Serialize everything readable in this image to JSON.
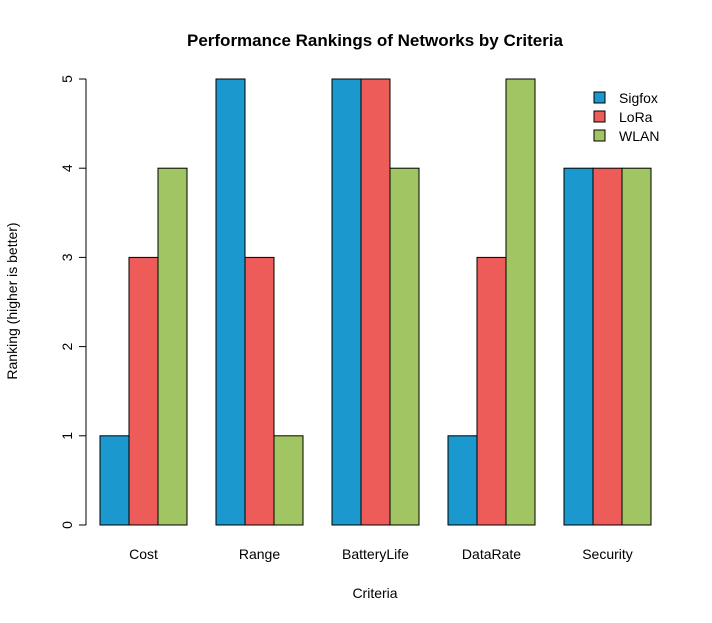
{
  "chart_data": {
    "type": "bar",
    "title": "Performance Rankings of Networks by Criteria",
    "xlabel": "Criteria",
    "ylabel": "Ranking (higher is better)",
    "categories": [
      "Cost",
      "Range",
      "BatteryLife",
      "DataRate",
      "Security"
    ],
    "series": [
      {
        "name": "Sigfox",
        "color": "#1b98cd",
        "values": [
          1,
          5,
          5,
          1,
          4
        ]
      },
      {
        "name": "LoRa",
        "color": "#ed5c58",
        "values": [
          3,
          3,
          5,
          3,
          4
        ]
      },
      {
        "name": "WLAN",
        "color": "#a0c562",
        "values": [
          4,
          1,
          4,
          5,
          4
        ]
      }
    ],
    "ylim": [
      0,
      5
    ],
    "yticks": [
      "0",
      "1",
      "2",
      "3",
      "4",
      "5"
    ],
    "grid": false,
    "legend_position": "top-right"
  }
}
